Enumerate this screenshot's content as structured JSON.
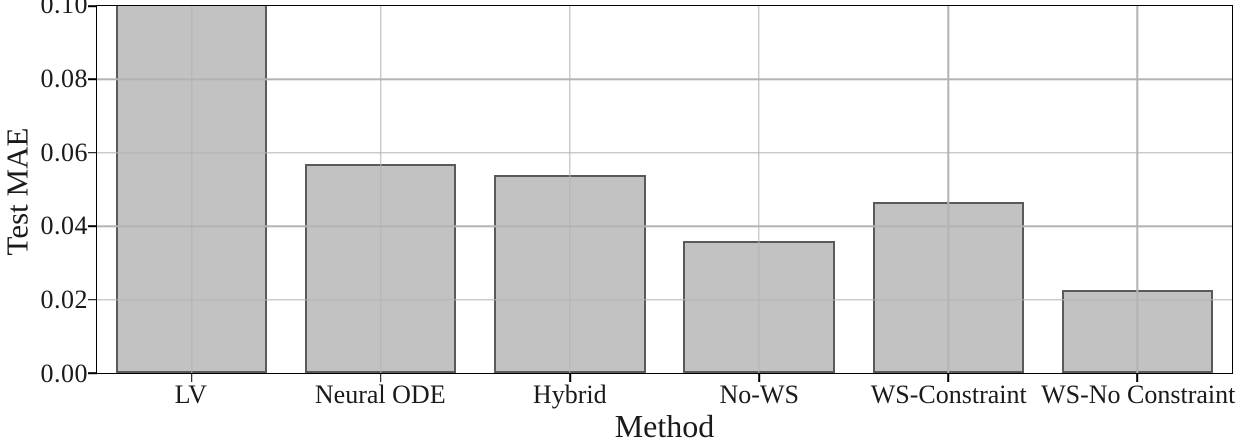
{
  "chart_data": {
    "type": "bar",
    "title": "",
    "xlabel": "Method",
    "ylabel": "Test MAE",
    "categories": [
      "LV",
      "Neural ODE",
      "Hybrid",
      "No-WS",
      "WS-Constraint",
      "WS-No Constraint"
    ],
    "values": [
      0.1,
      0.057,
      0.054,
      0.036,
      0.0465,
      0.0225
    ],
    "clipped": [
      true,
      false,
      false,
      false,
      false,
      false
    ],
    "note": "LV bar exceeds the y-axis upper limit and is clipped at 0.10",
    "ylim": [
      0,
      0.1
    ],
    "yticks": [
      0,
      0.02,
      0.04,
      0.06,
      0.08,
      0.1
    ],
    "ytick_labels": [
      "0.00",
      "0.02",
      "0.04",
      "0.06",
      "0.08",
      "0.10"
    ],
    "grid": true,
    "legend": "none",
    "bar_width_frac": 0.8,
    "colors": {
      "bar_fill": "#c2c2c2",
      "bar_edge": "#5a5a5a",
      "gridline": "#b3b3b3",
      "spine": "#000000",
      "text": "#1a1a1a"
    }
  }
}
